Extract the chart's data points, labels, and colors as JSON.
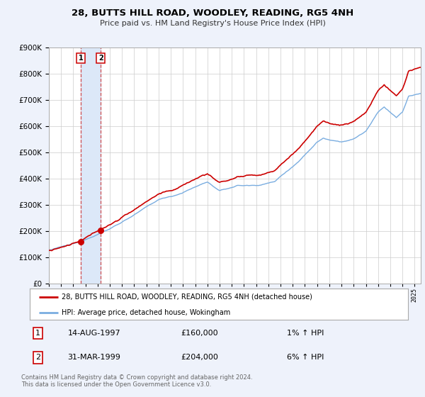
{
  "title": "28, BUTTS HILL ROAD, WOODLEY, READING, RG5 4NH",
  "subtitle": "Price paid vs. HM Land Registry's House Price Index (HPI)",
  "legend_line1": "28, BUTTS HILL ROAD, WOODLEY, READING, RG5 4NH (detached house)",
  "legend_line2": "HPI: Average price, detached house, Wokingham",
  "sale1_date": "14-AUG-1997",
  "sale1_price": "£160,000",
  "sale1_hpi": "1% ↑ HPI",
  "sale2_date": "31-MAR-1999",
  "sale2_price": "£204,000",
  "sale2_hpi": "6% ↑ HPI",
  "footer": "Contains HM Land Registry data © Crown copyright and database right 2024.\nThis data is licensed under the Open Government Licence v3.0.",
  "sale1_year": 1997.62,
  "sale1_value": 160000,
  "sale2_year": 1999.25,
  "sale2_value": 204000,
  "red_line_color": "#cc0000",
  "blue_line_color": "#7aade0",
  "vline_color": "#cc3333",
  "vshade_color": "#dce8f8",
  "grid_color": "#cccccc",
  "background_color": "#eef2fb",
  "plot_bg_color": "#ffffff",
  "ylim": [
    0,
    900000
  ],
  "xlim_start": 1995.0,
  "xlim_end": 2025.5
}
